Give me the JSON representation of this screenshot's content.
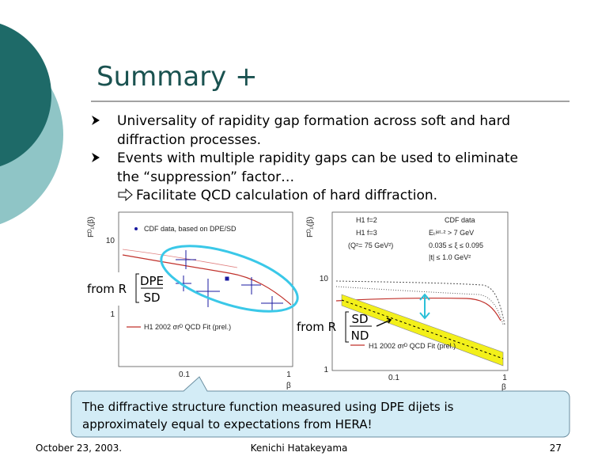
{
  "header": {
    "title": "Summary +"
  },
  "bullets": [
    {
      "lines": [
        "Universality of rapidity gap formation across soft and hard",
        "diffraction processes."
      ]
    },
    {
      "lines": [
        "Events with multiple rapidity gaps can be used to eliminate",
        "the “suppression” factor…"
      ],
      "sub": "Facilitate QCD calculation of hard diffraction."
    }
  ],
  "figure": {
    "left": {
      "y_label": "Fᴰⱼⱼ(β)",
      "legend": "CDF data, based on DPE/SD",
      "fit_label": "H1 2002 σrᴰ QCD Fit (prel.)",
      "y_ticks": [
        "10",
        "1"
      ],
      "x_ticks": [
        "0.1",
        "1"
      ],
      "x_label": "β",
      "ratio": {
        "prefix": "from R",
        "numerator": "DPE",
        "denominator": "SD"
      }
    },
    "right": {
      "y_label": "Fᴰⱼⱼ(β)",
      "legend": [
        "H1 f=2",
        "H1 f=3",
        "(Q²= 75 GeV²)",
        "CDF data",
        "Eₜʲᵉᵗ·² > 7 GeV",
        "0.035 ≤ ξ ≤ 0.095",
        "|t| ≤ 1.0 GeV²"
      ],
      "fit_label": "H1 2002 σrᴰ QCD Fit (prel.)",
      "y_ticks": [
        "10",
        "1"
      ],
      "x_ticks": [
        "0.1",
        "1"
      ],
      "x_label": "β",
      "ratio": {
        "prefix": "from R",
        "numerator": "SD",
        "denominator": "ND"
      }
    }
  },
  "callout": {
    "lines": [
      "The diffractive structure function measured using DPE dijets is",
      "approximately equal to expectations from HERA!"
    ]
  },
  "footer": {
    "date": "October 23, 2003.",
    "author": "Kenichi Hatakeyama",
    "page": "27"
  }
}
